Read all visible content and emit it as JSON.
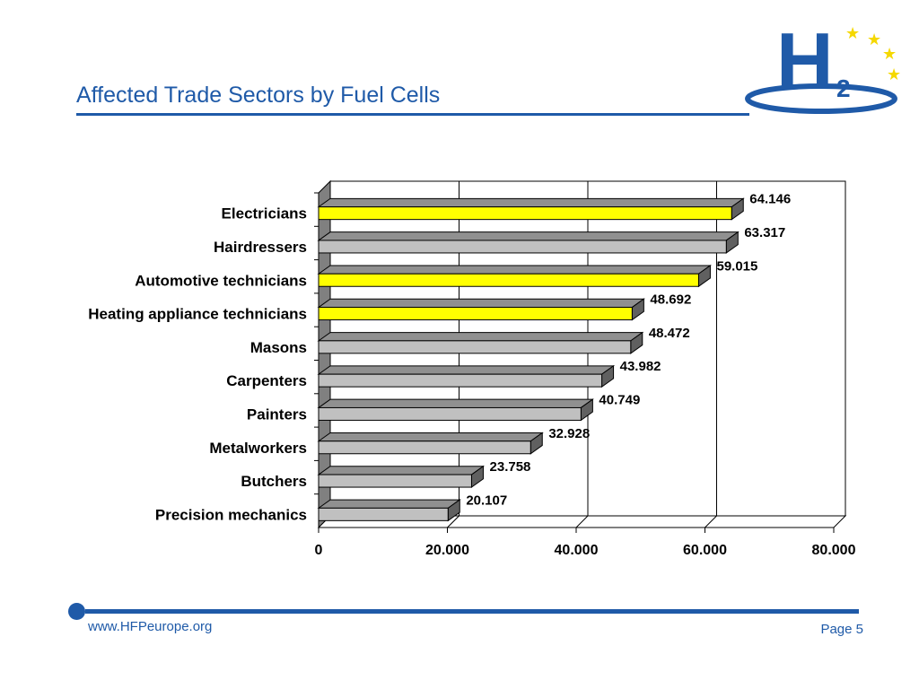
{
  "header": {
    "title": "Affected Trade Sectors by Fuel Cells"
  },
  "logo": {
    "letter": "H",
    "subscript": "2",
    "icon": "h2-stars-logo"
  },
  "footer": {
    "url": "www.HFPeurope.org",
    "page": "Page 5"
  },
  "colors": {
    "brand_blue": "#1f5aa8",
    "highlight": "#ffff00",
    "bar_gray": "#c0c0c0",
    "star_yellow": "#f5d800"
  },
  "chart_data": {
    "type": "bar",
    "orientation": "horizontal",
    "style": "3d",
    "categories": [
      "Electricians",
      "Hairdressers",
      "Automotive technicians",
      "Heating appliance technicians",
      "Masons",
      "Carpenters",
      "Painters",
      "Metalworkers",
      "Butchers",
      "Precision mechanics"
    ],
    "values": [
      64146,
      63317,
      59015,
      48692,
      48472,
      43982,
      40749,
      32928,
      23758,
      20107
    ],
    "value_labels": [
      "64.146",
      "63.317",
      "59.015",
      "48.692",
      "48.472",
      "43.982",
      "40.749",
      "32.928",
      "23.758",
      "20.107"
    ],
    "highlighted": [
      true,
      false,
      true,
      true,
      false,
      false,
      false,
      false,
      false,
      false
    ],
    "xlim": [
      0,
      80000
    ],
    "x_ticks": [
      0,
      20000,
      40000,
      60000,
      80000
    ],
    "x_tick_labels": [
      "0",
      "20.000",
      "40.000",
      "60.000",
      "80.000"
    ],
    "grid": true
  }
}
